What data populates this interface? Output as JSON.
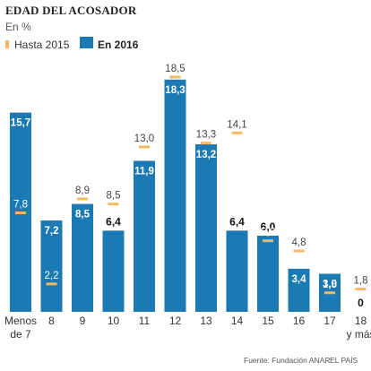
{
  "header": {
    "title": "EDAD DEL ACOSADOR",
    "subtitle": "En %"
  },
  "legend": {
    "items": [
      {
        "label": "Hasta 2015",
        "color": "#f5b95f"
      },
      {
        "label": "En 2016",
        "color": "#1b7ab3"
      }
    ]
  },
  "footer": {
    "source": "Fuente: Fundación ANAR.",
    "credit": "EL PAÍS"
  },
  "chart_data": {
    "type": "bar",
    "categories": [
      [
        "Menos",
        "de 7"
      ],
      [
        "8"
      ],
      [
        "9"
      ],
      [
        "10"
      ],
      [
        "11"
      ],
      [
        "12"
      ],
      [
        "13"
      ],
      [
        "14"
      ],
      [
        "15"
      ],
      [
        "16"
      ],
      [
        "17"
      ],
      [
        "18",
        "y más"
      ]
    ],
    "series": [
      {
        "name": "Hasta 2015",
        "type": "marker",
        "values": [
          7.8,
          2.2,
          8.9,
          8.5,
          13.0,
          18.5,
          13.3,
          14.1,
          5.6,
          4.8,
          1.5,
          1.8
        ],
        "labels": [
          "7,8",
          "2,2",
          "8,9",
          "8,5",
          "13,0",
          "18,5",
          "13,3",
          "14,1",
          "5,6",
          "4,8",
          "1,5",
          "1,8"
        ]
      },
      {
        "name": "En 2016",
        "type": "bar",
        "values": [
          15.7,
          7.2,
          8.5,
          6.4,
          11.9,
          18.3,
          13.2,
          6.4,
          6.0,
          3.4,
          3.0,
          0.0
        ],
        "labels": [
          "15,7",
          "7,2",
          "8,5",
          "6,4",
          "11,9",
          "18,3",
          "13,2",
          "6,4",
          "6,0",
          "3,4",
          "3,0",
          "0"
        ]
      }
    ],
    "ylim": [
      0,
      18.5
    ],
    "colors": {
      "bar": "#1b7ab3",
      "marker": "#f5b95f"
    }
  }
}
